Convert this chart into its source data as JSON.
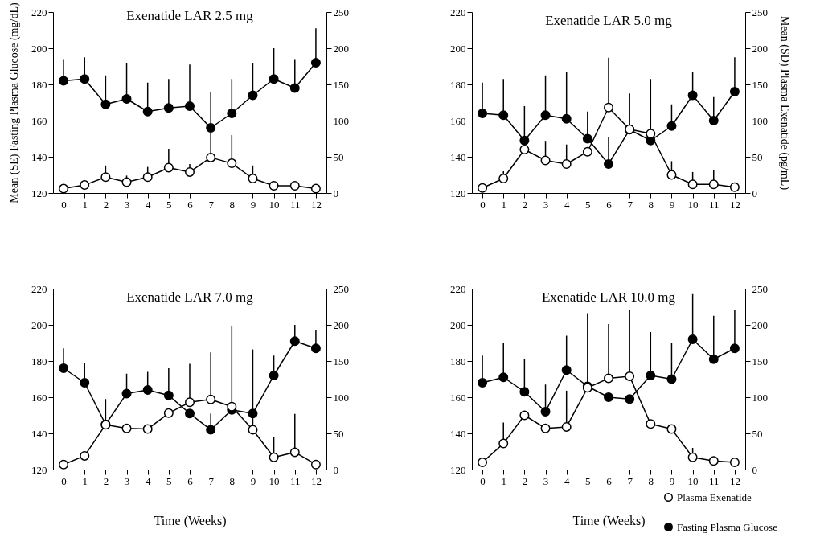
{
  "chart_data": [
    {
      "type": "line",
      "title": "Exenatide LAR 2.5 mg",
      "ylabel": "Mean (SE) Fasting Plasma Glucose (mg/dL)",
      "x": [
        0,
        1,
        2,
        3,
        4,
        5,
        6,
        7,
        8,
        9,
        10,
        11,
        12
      ],
      "xlim": [
        -0.5,
        12.5
      ],
      "xticks": [
        0,
        1,
        2,
        3,
        4,
        5,
        6,
        7,
        8,
        9,
        10,
        11,
        12
      ],
      "ylim": [
        120,
        220
      ],
      "yticks": [
        120,
        140,
        160,
        180,
        200,
        220
      ],
      "y2lim": [
        0,
        250
      ],
      "y2ticks": [
        0,
        50,
        100,
        150,
        200,
        250
      ],
      "grid": false,
      "legend": false,
      "marker": "circle",
      "line_style": "solid",
      "series": [
        {
          "color": "#000000",
          "axis": "y2",
          "values": [
            6,
            11,
            22,
            15,
            22,
            35,
            29,
            49,
            41,
            20,
            10,
            10,
            6
          ],
          "errors": [
            null,
            null,
            [
              22,
              38
            ],
            [
              15,
              24
            ],
            [
              22,
              36
            ],
            [
              35,
              61
            ],
            [
              29,
              40
            ],
            [
              49,
              85
            ],
            [
              41,
              80
            ],
            [
              20,
              38
            ],
            null,
            null,
            null
          ]
        },
        {
          "color": "#000000",
          "values": [
            182,
            183,
            169,
            172,
            165,
            167,
            168,
            156,
            164,
            174,
            183,
            178,
            192
          ],
          "errors": [
            [
              182,
              194
            ],
            [
              183,
              195
            ],
            [
              169,
              185
            ],
            [
              172,
              192
            ],
            [
              165,
              181
            ],
            [
              167,
              183
            ],
            [
              168,
              191
            ],
            [
              156,
              176
            ],
            [
              164,
              183
            ],
            [
              174,
              192
            ],
            [
              183,
              200
            ],
            [
              178,
              194
            ],
            [
              192,
              211
            ]
          ]
        }
      ]
    },
    {
      "type": "line",
      "title": "Exenatide LAR 5.0 mg",
      "y2label": "Mean (SD) Plasma Exenatide (pg/mL)",
      "x": [
        0,
        1,
        2,
        3,
        4,
        5,
        6,
        7,
        8,
        9,
        10,
        11,
        12
      ],
      "xlim": [
        -0.5,
        12.5
      ],
      "xticks": [
        0,
        1,
        2,
        3,
        4,
        5,
        6,
        7,
        8,
        9,
        10,
        11,
        12
      ],
      "ylim": [
        120,
        220
      ],
      "yticks": [
        120,
        140,
        160,
        180,
        200,
        220
      ],
      "y2lim": [
        0,
        250
      ],
      "y2ticks": [
        0,
        50,
        100,
        150,
        200,
        250
      ],
      "grid": false,
      "legend": false,
      "marker": "circle",
      "line_style": "solid",
      "series": [
        {
          "color": "#000000",
          "axis": "y2",
          "values": [
            7,
            20,
            60,
            45,
            40,
            57,
            118,
            88,
            82,
            25,
            12,
            12,
            8
          ],
          "errors": [
            null,
            [
              20,
              30
            ],
            null,
            [
              45,
              72
            ],
            [
              40,
              67
            ],
            null,
            [
              118,
              187
            ],
            null,
            null,
            [
              25,
              44
            ],
            [
              12,
              29
            ],
            [
              12,
              31
            ],
            null
          ]
        },
        {
          "color": "#000000",
          "values": [
            164,
            163,
            149,
            163,
            161,
            150,
            136,
            155,
            149,
            157,
            174,
            160,
            176
          ],
          "errors": [
            [
              164,
              181
            ],
            [
              163,
              183
            ],
            [
              149,
              168
            ],
            [
              163,
              185
            ],
            [
              161,
              187
            ],
            [
              150,
              165
            ],
            [
              136,
              151
            ],
            [
              155,
              175
            ],
            [
              149,
              183
            ],
            [
              157,
              169
            ],
            [
              174,
              187
            ],
            [
              160,
              173
            ],
            [
              176,
              195
            ]
          ]
        }
      ]
    },
    {
      "type": "line",
      "title": "Exenatide LAR 7.0 mg",
      "xlabel": "Time (Weeks)",
      "x": [
        0,
        1,
        2,
        3,
        4,
        5,
        6,
        7,
        8,
        9,
        10,
        11,
        12
      ],
      "xlim": [
        -0.5,
        12.5
      ],
      "xticks": [
        0,
        1,
        2,
        3,
        4,
        5,
        6,
        7,
        8,
        9,
        10,
        11,
        12
      ],
      "ylim": [
        120,
        220
      ],
      "yticks": [
        120,
        140,
        160,
        180,
        200,
        220
      ],
      "y2lim": [
        0,
        250
      ],
      "y2ticks": [
        0,
        50,
        100,
        150,
        200,
        250
      ],
      "grid": false,
      "legend": false,
      "marker": "circle",
      "line_style": "solid",
      "series": [
        {
          "color": "#000000",
          "axis": "y2",
          "values": [
            7,
            19,
            62,
            57,
            56,
            78,
            93,
            97,
            87,
            55,
            17,
            24,
            7
          ],
          "errors": [
            null,
            null,
            null,
            null,
            null,
            null,
            [
              93,
              146
            ],
            [
              97,
              162
            ],
            [
              87,
              199
            ],
            [
              55,
              166
            ],
            [
              17,
              45
            ],
            [
              24,
              77
            ],
            null
          ]
        },
        {
          "color": "#000000",
          "values": [
            176,
            168,
            145,
            162,
            164,
            161,
            151,
            142,
            153,
            151,
            172,
            191,
            187
          ],
          "errors": [
            [
              176,
              187
            ],
            [
              168,
              179
            ],
            [
              145,
              159
            ],
            [
              162,
              173
            ],
            [
              164,
              174
            ],
            [
              161,
              176
            ],
            null,
            [
              142,
              151
            ],
            null,
            null,
            [
              172,
              183
            ],
            [
              191,
              200
            ],
            [
              187,
              197
            ]
          ]
        }
      ]
    },
    {
      "type": "line",
      "title": "Exenatide LAR 10.0 mg",
      "xlabel": "Time (Weeks)",
      "x": [
        0,
        1,
        2,
        3,
        4,
        5,
        6,
        7,
        8,
        9,
        10,
        11,
        12
      ],
      "xlim": [
        -0.5,
        12.5
      ],
      "xticks": [
        0,
        1,
        2,
        3,
        4,
        5,
        6,
        7,
        8,
        9,
        10,
        11,
        12
      ],
      "ylim": [
        120,
        220
      ],
      "yticks": [
        120,
        140,
        160,
        180,
        200,
        220
      ],
      "y2lim": [
        0,
        250
      ],
      "y2ticks": [
        0,
        50,
        100,
        150,
        200,
        250
      ],
      "grid": false,
      "legend": "bottom right",
      "marker": "circle",
      "line_style": "solid",
      "series": [
        {
          "name": "Plasma Exenatide",
          "color": "#000000",
          "axis": "y2",
          "values": [
            10,
            36,
            75,
            57,
            59,
            113,
            126,
            129,
            63,
            56,
            17,
            12,
            10
          ],
          "errors": [
            null,
            [
              36,
              65
            ],
            null,
            null,
            [
              59,
              109
            ],
            [
              113,
              216
            ],
            [
              126,
              201
            ],
            [
              129,
              220
            ],
            null,
            null,
            [
              17,
              30
            ],
            null,
            null
          ]
        },
        {
          "name": "Fasting Plasma Glucose",
          "color": "#000000",
          "values": [
            168,
            171,
            163,
            152,
            175,
            166,
            160,
            159,
            172,
            170,
            192,
            181,
            187
          ],
          "errors": [
            [
              168,
              183
            ],
            [
              171,
              190
            ],
            [
              163,
              181
            ],
            [
              152,
              167
            ],
            [
              175,
              194
            ],
            null,
            null,
            null,
            [
              172,
              196
            ],
            [
              170,
              190
            ],
            [
              192,
              217
            ],
            [
              181,
              205
            ],
            [
              187,
              208
            ]
          ]
        }
      ]
    }
  ]
}
